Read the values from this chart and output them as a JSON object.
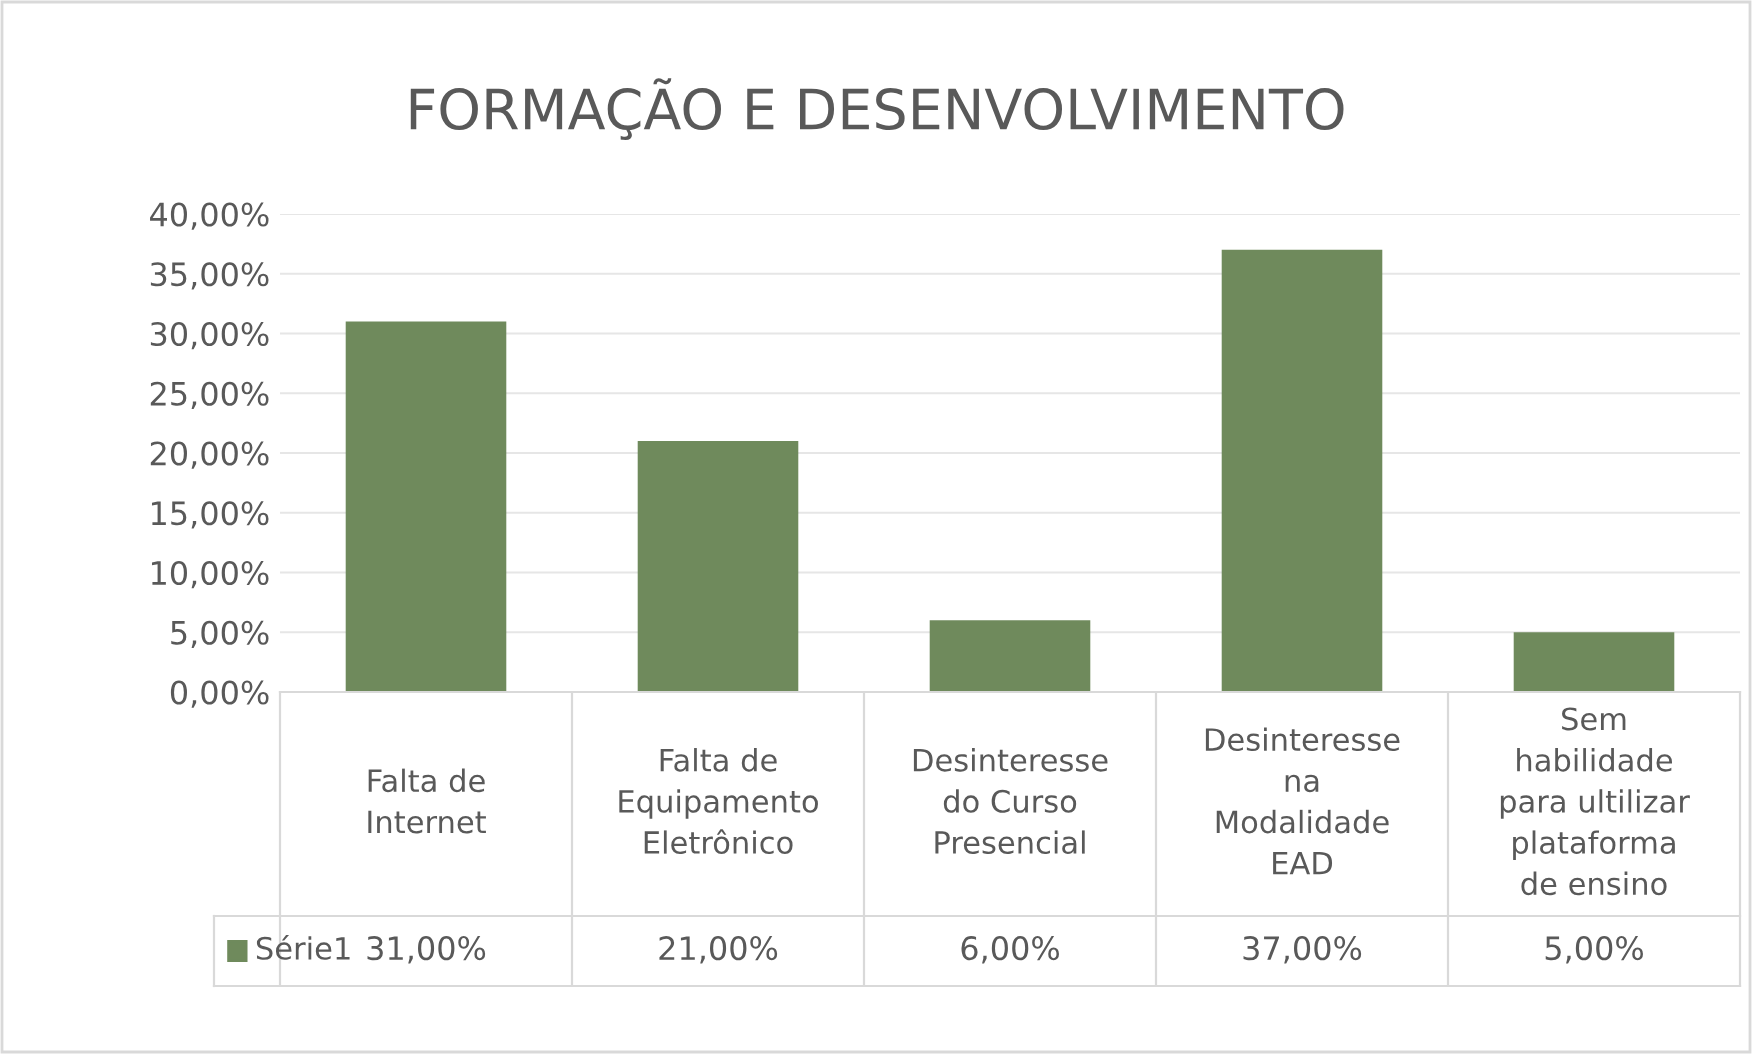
{
  "chart_data": {
    "type": "bar",
    "title": "FORMAÇÃO E DESENVOLVIMENTO",
    "categories": [
      "Falta de\nInternet",
      "Falta de\nEquipamento\nEletrônico",
      "Desinteresse\ndo Curso\nPresencial",
      "Desinteresse\nna\nModalidade\nEAD",
      "Sem\nhabilidade\npara ultilizar\nplataforma\nde ensino"
    ],
    "series": [
      {
        "name": "Série1",
        "color": "#6f8a5c",
        "values": [
          31,
          21,
          6,
          37,
          5
        ],
        "value_labels": [
          "31,00%",
          "21,00%",
          "6,00%",
          "37,00%",
          "5,00%"
        ]
      }
    ],
    "ylim": [
      0,
      40
    ],
    "yticks": [
      {
        "value": 0,
        "label": "0,00%"
      },
      {
        "value": 5,
        "label": "5,00%"
      },
      {
        "value": 10,
        "label": "10,00%"
      },
      {
        "value": 15,
        "label": "15,00%"
      },
      {
        "value": 20,
        "label": "20,00%"
      },
      {
        "value": 25,
        "label": "25,00%"
      },
      {
        "value": 30,
        "label": "30,00%"
      },
      {
        "value": 35,
        "label": "35,00%"
      },
      {
        "value": 40,
        "label": "40,00%"
      }
    ],
    "grid": "y",
    "legend": "bottom"
  }
}
